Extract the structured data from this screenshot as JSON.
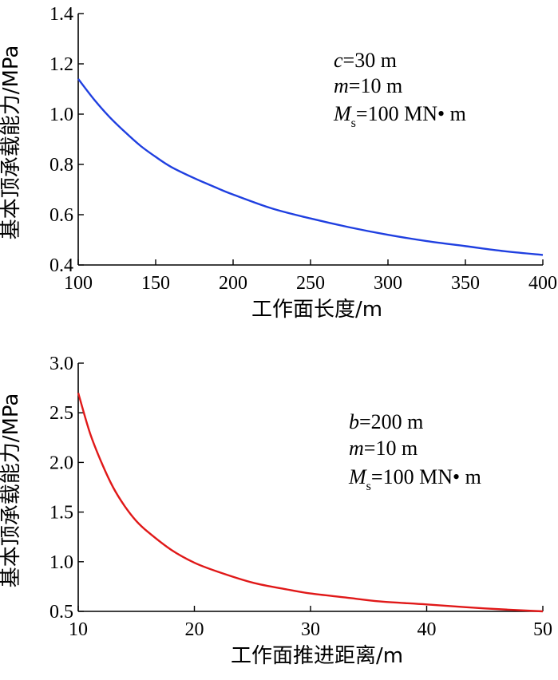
{
  "chart_data": [
    {
      "type": "line",
      "xlabel": "工作面长度/m",
      "ylabel": "基本顶承载能力/MPa",
      "xlim": [
        100,
        400
      ],
      "ylim": [
        0.4,
        1.4
      ],
      "xticks": [
        100,
        150,
        200,
        250,
        300,
        350,
        400
      ],
      "yticks": [
        0.4,
        0.6,
        0.8,
        1.0,
        1.2,
        1.4
      ],
      "xtick_labels": [
        "100",
        "150",
        "200",
        "250",
        "300",
        "350",
        "400"
      ],
      "ytick_labels": [
        "0.4",
        "0.6",
        "0.8",
        "1.0",
        "1.2",
        "1.4"
      ],
      "grid": false,
      "series": [
        {
          "color": "#1f3fe0",
          "x": [
            100,
            110,
            120,
            130,
            140,
            150,
            160,
            175,
            190,
            200,
            225,
            250,
            275,
            300,
            325,
            350,
            375,
            400
          ],
          "y": [
            1.14,
            1.06,
            0.99,
            0.93,
            0.875,
            0.83,
            0.79,
            0.745,
            0.705,
            0.68,
            0.625,
            0.585,
            0.55,
            0.52,
            0.495,
            0.475,
            0.455,
            0.44
          ]
        }
      ],
      "annotations": [
        {
          "var": "c",
          "sub": "",
          "text": "=30 m"
        },
        {
          "var": "m",
          "sub": "",
          "text": "=10 m"
        },
        {
          "var": "M",
          "sub": "s",
          "text": "=100 MN• m"
        }
      ]
    },
    {
      "type": "line",
      "xlabel": "工作面推进距离/m",
      "ylabel": "基本顶承载能力/MPa",
      "xlim": [
        10,
        50
      ],
      "ylim": [
        0.5,
        3.0
      ],
      "xticks": [
        10,
        20,
        30,
        40,
        50
      ],
      "yticks": [
        0.5,
        1.0,
        1.5,
        2.0,
        2.5,
        3.0
      ],
      "xtick_labels": [
        "10",
        "20",
        "30",
        "40",
        "50"
      ],
      "ytick_labels": [
        "0.5",
        "1.0",
        "1.5",
        "2.0",
        "2.5",
        "3.0"
      ],
      "grid": false,
      "series": [
        {
          "color": "#e01818",
          "x": [
            10,
            11,
            12,
            13,
            14,
            15,
            16,
            18,
            20,
            22,
            25,
            28,
            30,
            33,
            36,
            40,
            45,
            50
          ],
          "y": [
            2.7,
            2.3,
            2.0,
            1.75,
            1.56,
            1.41,
            1.3,
            1.12,
            0.99,
            0.9,
            0.79,
            0.72,
            0.68,
            0.64,
            0.6,
            0.57,
            0.53,
            0.5
          ]
        }
      ],
      "annotations": [
        {
          "var": "b",
          "sub": "",
          "text": "=200 m"
        },
        {
          "var": "m",
          "sub": "",
          "text": "=10 m"
        },
        {
          "var": "M",
          "sub": "s",
          "text": "=100 MN• m"
        }
      ]
    }
  ]
}
